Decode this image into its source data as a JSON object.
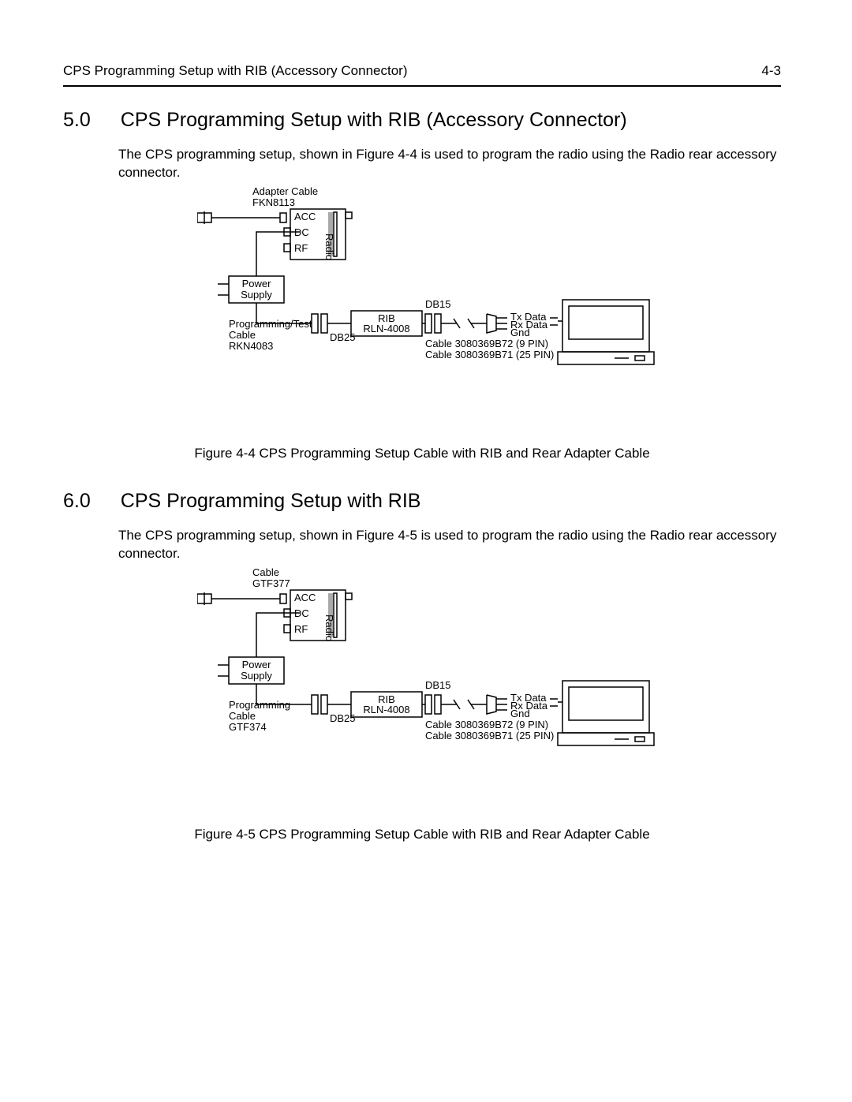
{
  "header": {
    "left": "CPS Programming Setup with RIB (Accessory Connector)",
    "right": "4-3"
  },
  "sections": [
    {
      "num": "5.0",
      "title": "CPS Programming Setup with RIB (Accessory Connector)",
      "para": "The CPS programming setup, shown in Figure 4-4 is used to program the radio using the Radio rear accessory connector.",
      "caption": "Figure 4-4 CPS Programming Setup Cable with RIB and Rear Adapter Cable",
      "diagram": {
        "cable_top_l1": "Adapter Cable",
        "cable_top_l2": "FKN8113",
        "prog_l1": "Programming/Test",
        "prog_l2": "Cable",
        "prog_l3": "RKN4083"
      }
    },
    {
      "num": "6.0",
      "title": "CPS Programming Setup with RIB",
      "para": "The CPS programming setup, shown in Figure 4-5 is used to program the radio using the Radio rear accessory connector.",
      "caption": "Figure 4-5 CPS Programming Setup Cable with RIB and Rear Adapter Cable",
      "diagram": {
        "cable_top_l1": "Cable",
        "cable_top_l2": "GTF377",
        "prog_l1": "Programming",
        "prog_l2": "Cable",
        "prog_l3": "GTF374"
      }
    }
  ],
  "labels": {
    "acc": "ACC",
    "dc": "DC",
    "rf": "RF",
    "radio": "Radio",
    "power_l1": "Power",
    "power_l2": "Supply",
    "db25": "DB25",
    "db15": "DB15",
    "rib_l1": "RIB",
    "rib_l2": "RLN-4008",
    "tx": "Tx Data",
    "rx": "Rx Data",
    "gnd": "Gnd",
    "cable9": "Cable 3080369B72 (9 PIN)",
    "cable25": "Cable 3080369B71 (25 PIN)"
  },
  "style": {
    "stroke": "#000000",
    "stroke_width": 1.5,
    "font_small": 13,
    "bg": "#ffffff"
  }
}
